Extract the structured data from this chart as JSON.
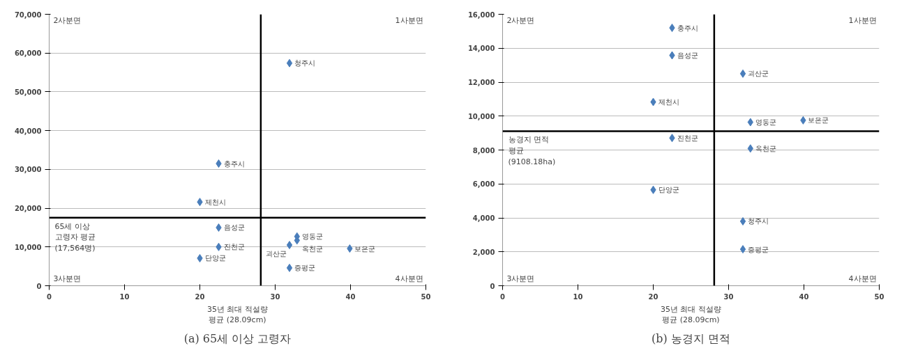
{
  "chart_data": [
    {
      "type": "scatter",
      "title": "(a) 65세 이상 고령자",
      "marker": "diamond",
      "grid": "y",
      "x": [
        31.9,
        22.5,
        20.0,
        22.5,
        32.9,
        32.9,
        31.9,
        22.5,
        39.9,
        20.0,
        31.9
      ],
      "series": [
        {
          "color": "#4a7ebb",
          "values": [
            57400,
            31500,
            21600,
            15000,
            12700,
            11700,
            10500,
            10000,
            9600,
            7100,
            4600
          ]
        }
      ],
      "xlim": [
        0,
        50
      ],
      "xticks": [
        0,
        10,
        20,
        30,
        40,
        50
      ],
      "ylim": [
        0,
        70000
      ],
      "yticks": [
        0,
        {
          "value": 10000,
          "label": "10,000"
        },
        {
          "value": 20000,
          "label": "20,000"
        },
        {
          "value": 30000,
          "label": "30,000"
        },
        {
          "value": 40000,
          "label": "40,000"
        },
        {
          "value": 50000,
          "label": "50,000"
        },
        {
          "value": 60000,
          "label": "60,000"
        },
        {
          "value": 70000,
          "label": "70,000"
        }
      ],
      "ref_lines": [
        {
          "axis": "x",
          "value": 28.09,
          "label": "35년 최대 적설량\n평균 (28.09cm)",
          "color": "#000000"
        },
        {
          "axis": "y",
          "value": 17564,
          "label": "65세 이상\n고령자 평균\n(17,564명)",
          "color": "#000000"
        }
      ],
      "annotations": [
        "2사분면",
        "1사분면",
        "3사분면",
        "4사분면",
        {
          "text": "청주시",
          "x": 31.9,
          "y": 57400
        },
        {
          "text": "충주시",
          "x": 22.5,
          "y": 31500
        },
        {
          "text": "제천시",
          "x": 20.0,
          "y": 21600
        },
        {
          "text": "음성군",
          "x": 22.5,
          "y": 15000
        },
        {
          "text": "영동군",
          "x": 32.9,
          "y": 12700
        },
        {
          "text": "옥천군",
          "x": 32.9,
          "y": 11700
        },
        {
          "text": "괴산군",
          "x": 31.9,
          "y": 10500
        },
        {
          "text": "진천군",
          "x": 22.5,
          "y": 10000
        },
        {
          "text": "보은군",
          "x": 39.9,
          "y": 9600
        },
        {
          "text": "단양군",
          "x": 20.0,
          "y": 7100
        },
        {
          "text": "증평군",
          "x": 31.9,
          "y": 4600
        }
      ]
    },
    {
      "type": "scatter",
      "title": "(b) 농경지 면적",
      "marker": "diamond",
      "grid": "y",
      "x": [
        22.5,
        22.5,
        31.9,
        20.0,
        32.9,
        39.9,
        22.5,
        32.9,
        20.0,
        31.9,
        31.9
      ],
      "series": [
        {
          "color": "#4a7ebb",
          "values": [
            15200,
            13580,
            12500,
            10830,
            9640,
            9750,
            8710,
            8090,
            5650,
            3800,
            2150
          ]
        }
      ],
      "xlim": [
        0,
        50
      ],
      "xticks": [
        0,
        10,
        20,
        30,
        40,
        50
      ],
      "ylim": [
        0,
        16000
      ],
      "yticks": [
        0,
        {
          "value": 2000,
          "label": "2,000"
        },
        {
          "value": 4000,
          "label": "4,000"
        },
        {
          "value": 6000,
          "label": "6,000"
        },
        {
          "value": 8000,
          "label": "8,000"
        },
        {
          "value": 10000,
          "label": "10,000"
        },
        {
          "value": 12000,
          "label": "12,000"
        },
        {
          "value": 14000,
          "label": "14,000"
        },
        {
          "value": 16000,
          "label": "16,000"
        }
      ],
      "ref_lines": [
        {
          "axis": "x",
          "value": 28.09,
          "label": "35년 최대 적설량\n평균 (28.09cm)",
          "color": "#000000"
        },
        {
          "axis": "y",
          "value": 9108.18,
          "label": "농경지 면적\n평균\n(9108.18ha)",
          "color": "#000000"
        }
      ],
      "annotations": [
        "2사분면",
        "1사분면",
        "3사분면",
        "4사분면",
        {
          "text": "충주시",
          "x": 22.5,
          "y": 15200
        },
        {
          "text": "음성군",
          "x": 22.5,
          "y": 13580
        },
        {
          "text": "괴산군",
          "x": 31.9,
          "y": 12500
        },
        {
          "text": "제천시",
          "x": 20.0,
          "y": 10830
        },
        {
          "text": "영동군",
          "x": 32.9,
          "y": 9640
        },
        {
          "text": "보은군",
          "x": 39.9,
          "y": 9750
        },
        {
          "text": "진천군",
          "x": 22.5,
          "y": 8710
        },
        {
          "text": "옥천군",
          "x": 32.9,
          "y": 8090
        },
        {
          "text": "단양군",
          "x": 20.0,
          "y": 5650
        },
        {
          "text": "청주시",
          "x": 31.9,
          "y": 3800
        },
        {
          "text": "증평군",
          "x": 31.9,
          "y": 2150
        }
      ]
    }
  ]
}
